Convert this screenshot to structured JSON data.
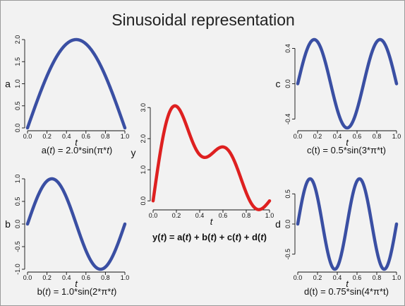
{
  "title": "Sinusoidal representation",
  "colors": {
    "background": "#f2f2f2",
    "component_curve": "#3a4fa3",
    "sum_curve": "#de2020"
  },
  "chart_data": [
    {
      "id": "a",
      "type": "line",
      "xlabel": "t",
      "ylabel": "a",
      "caption_parts": [
        "a(",
        "t",
        ") = 2.0*sin(π*",
        "t",
        ")"
      ],
      "formula": {
        "amplitude": 2.0,
        "multiplier": 1
      },
      "xlim": [
        0,
        1
      ],
      "ylim": [
        0,
        2.0
      ],
      "xticks": [
        "0.0",
        "0.2",
        "0.4",
        "0.6",
        "0.8",
        "1.0"
      ],
      "yticks": [
        "0.0",
        "0.5",
        "1.0",
        "1.5",
        "2.0"
      ],
      "color": "#3a4fa3"
    },
    {
      "id": "b",
      "type": "line",
      "xlabel": "t",
      "ylabel": "b",
      "caption_parts": [
        "b(",
        "t",
        ") = 1.0*sin(2*π*",
        "t",
        ")"
      ],
      "formula": {
        "amplitude": 1.0,
        "multiplier": 2
      },
      "xlim": [
        0,
        1
      ],
      "ylim": [
        -1.0,
        1.0
      ],
      "xticks": [
        "0.0",
        "0.2",
        "0.4",
        "0.6",
        "0.8",
        "1.0"
      ],
      "yticks": [
        "-1.0",
        "-0.5",
        "0.0",
        "0.5",
        "1.0"
      ],
      "color": "#3a4fa3"
    },
    {
      "id": "c",
      "type": "line",
      "xlabel": "t",
      "ylabel": "c",
      "caption_parts": [
        "c(t) = 0.5*sin(3*π*t)"
      ],
      "formula": {
        "amplitude": 0.5,
        "multiplier": 3
      },
      "xlim": [
        0,
        1
      ],
      "ylim": [
        -0.5,
        0.5
      ],
      "xticks": [
        "0.0",
        "0.2",
        "0.4",
        "0.6",
        "0.8",
        "1.0"
      ],
      "yticks": [
        "-0.4",
        "0.0",
        "0.4"
      ],
      "color": "#3a4fa3"
    },
    {
      "id": "d",
      "type": "line",
      "xlabel": "t",
      "ylabel": "d",
      "caption_parts": [
        "d(t) = 0.75*sin(4*π*t)"
      ],
      "formula": {
        "amplitude": 0.75,
        "multiplier": 4
      },
      "xlim": [
        0,
        1
      ],
      "ylim": [
        -0.75,
        0.75
      ],
      "xticks": [
        "0.0",
        "0.2",
        "0.4",
        "0.6",
        "0.8",
        "1.0"
      ],
      "yticks": [
        "-0.5",
        "0.0",
        "0.5"
      ],
      "color": "#3a4fa3"
    },
    {
      "id": "y",
      "type": "line",
      "xlabel": "t",
      "ylabel": "y",
      "caption_parts": [
        "y(",
        "t",
        ") = a(",
        "t",
        ") + b(",
        "t",
        ") + c(",
        "t",
        ") + d(",
        "t",
        ")"
      ],
      "formula": {
        "sum_of": [
          "a",
          "b",
          "c",
          "d"
        ]
      },
      "xlim": [
        0,
        1
      ],
      "ylim": [
        -0.2,
        3.3
      ],
      "xticks": [
        "0.0",
        "0.2",
        "0.4",
        "0.6",
        "0.8",
        "1.0"
      ],
      "yticks": [
        "0.0",
        "1.0",
        "2.0",
        "3.0"
      ],
      "color": "#de2020"
    }
  ]
}
